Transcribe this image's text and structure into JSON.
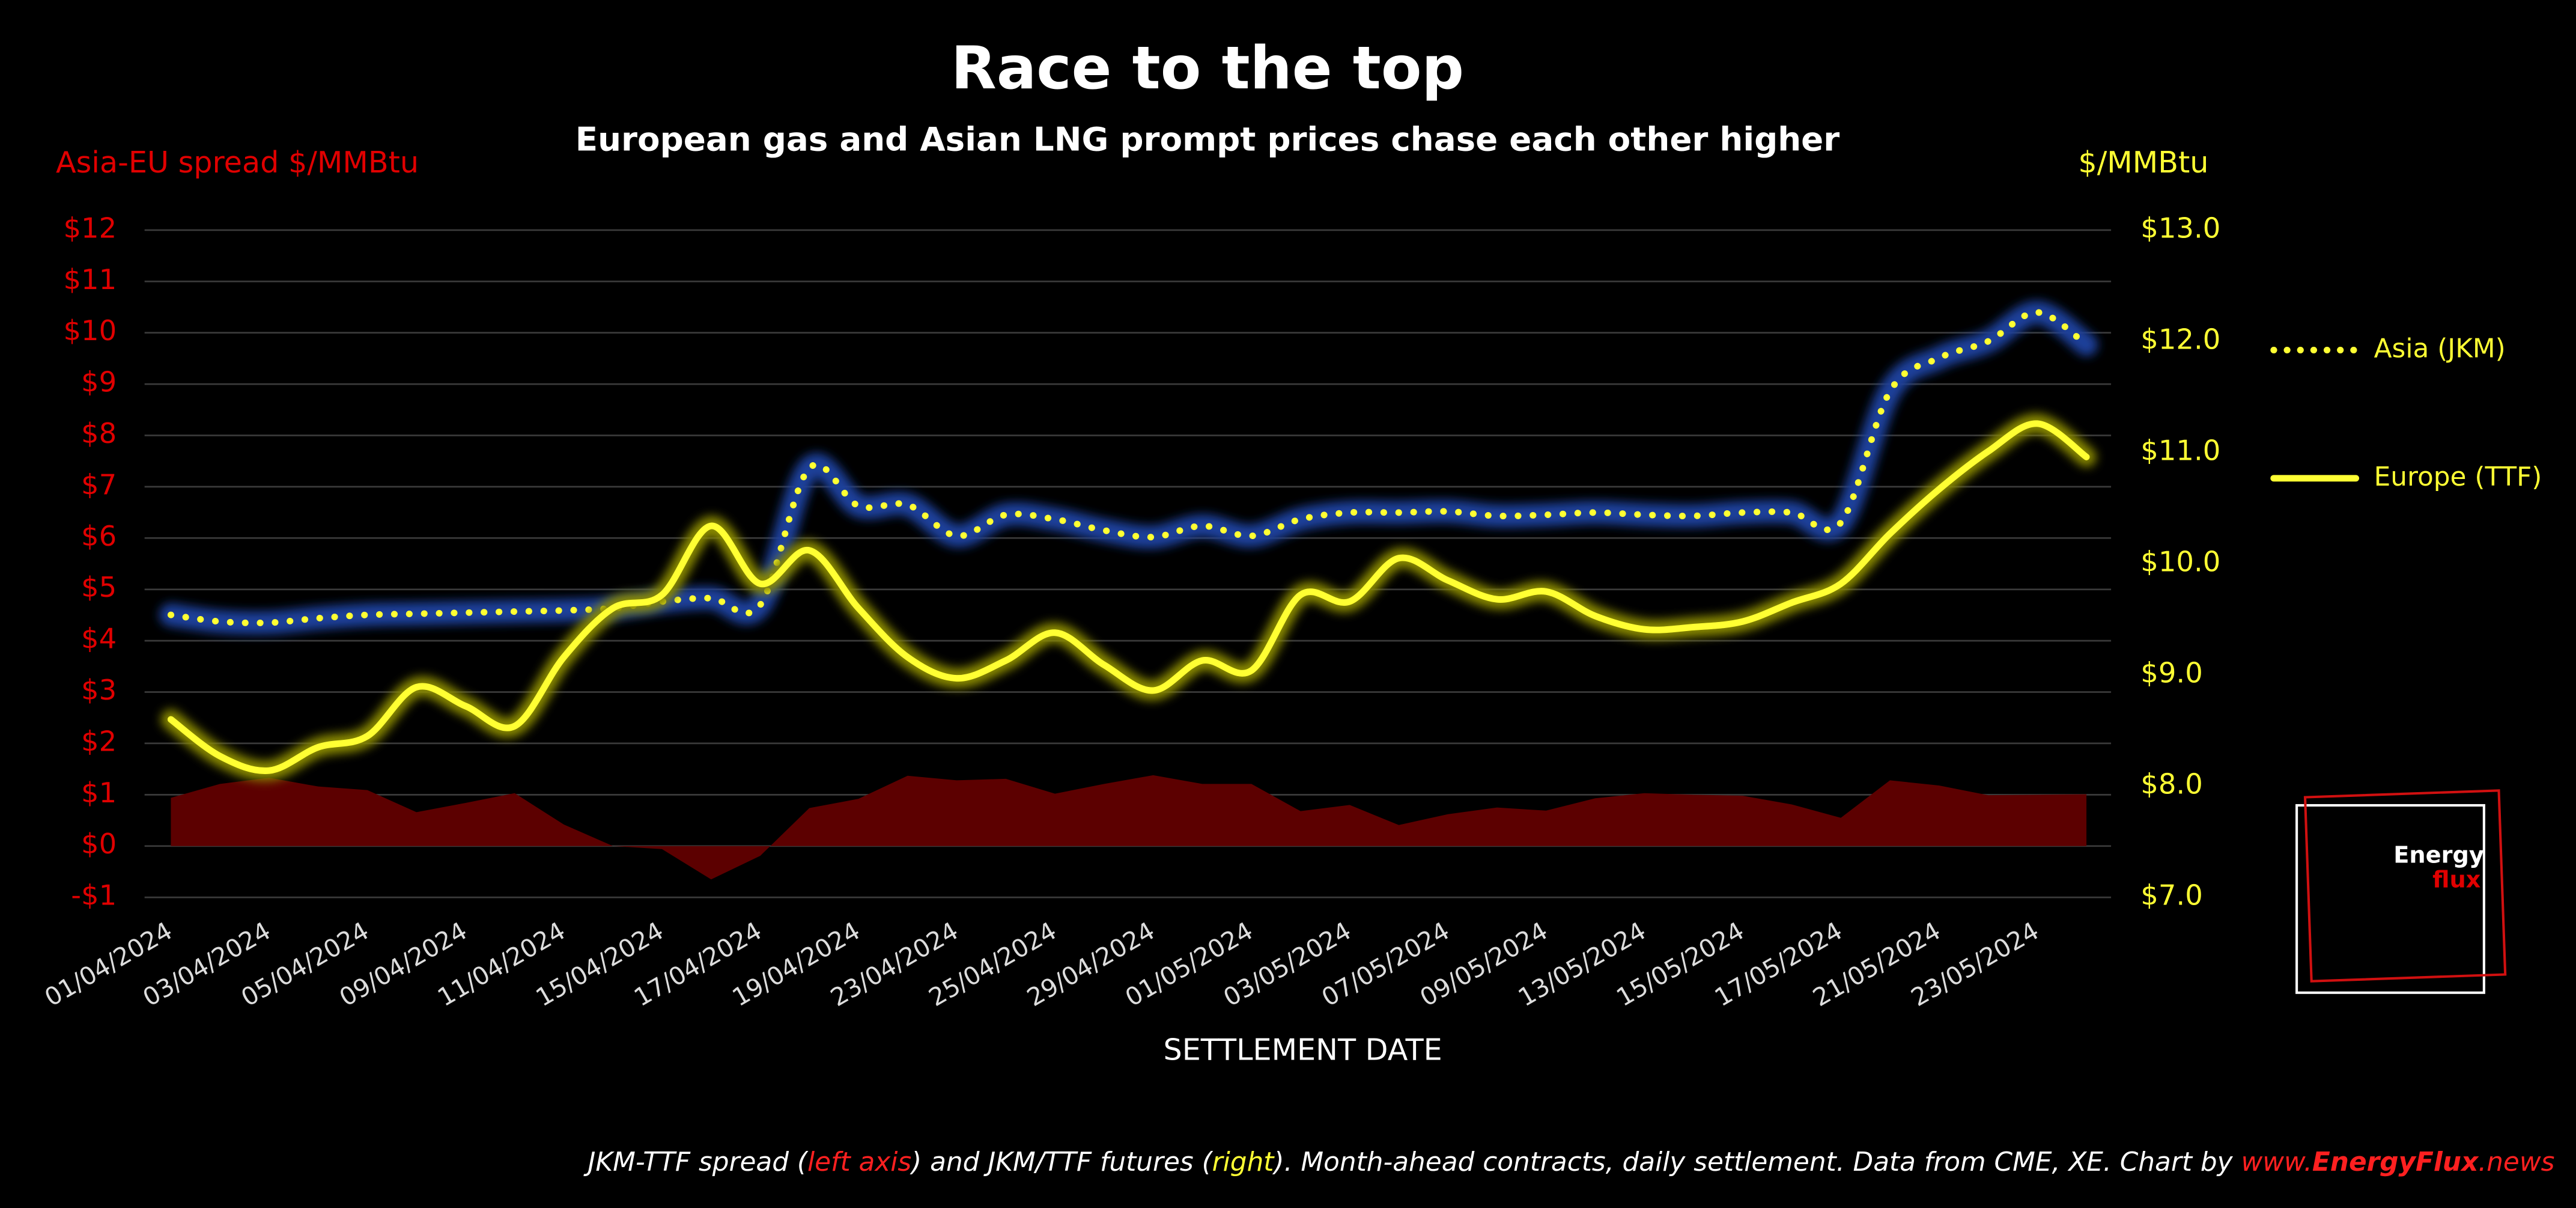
{
  "chart_data": {
    "type": "line",
    "title": "Race to the top",
    "subtitle": "European gas and Asian LNG prompt prices chase each other higher",
    "y_label": "Asia-EU spread $/MMBtu",
    "y2_label": "$/MMBtu",
    "x_label": "SETTLEMENT DATE",
    "categories": [
      "01/04/2024",
      null,
      "03/04/2024",
      null,
      "05/04/2024",
      null,
      "09/04/2024",
      null,
      "11/04/2024",
      null,
      "15/04/2024",
      null,
      "17/04/2024",
      null,
      "19/04/2024",
      null,
      "23/04/2024",
      null,
      "25/04/2024",
      null,
      "29/04/2024",
      null,
      "01/05/2024",
      null,
      "03/05/2024",
      null,
      "07/05/2024",
      null,
      "09/05/2024",
      null,
      "13/05/2024",
      null,
      "15/05/2024",
      null,
      "17/05/2024",
      null,
      "21/05/2024",
      null,
      "23/05/2024",
      null
    ],
    "ylim": [
      -1,
      12
    ],
    "yticks": [
      {
        "value": -1,
        "label": "-$1"
      },
      {
        "value": 0,
        "label": "$0"
      },
      {
        "value": 1,
        "label": "$1"
      },
      {
        "value": 2,
        "label": "$2"
      },
      {
        "value": 3,
        "label": "$3"
      },
      {
        "value": 4,
        "label": "$4"
      },
      {
        "value": 5,
        "label": "$5"
      },
      {
        "value": 6,
        "label": "$6"
      },
      {
        "value": 7,
        "label": "$7"
      },
      {
        "value": 8,
        "label": "$8"
      },
      {
        "value": 9,
        "label": "$9"
      },
      {
        "value": 10,
        "label": "$10"
      },
      {
        "value": 11,
        "label": "$11"
      },
      {
        "value": 12,
        "label": "$12"
      }
    ],
    "y2lim": [
      7,
      13
    ],
    "y2ticks": [
      {
        "value": 7,
        "label": "$7.0"
      },
      {
        "value": 8,
        "label": "$8.0"
      },
      {
        "value": 9,
        "label": "$9.0"
      },
      {
        "value": 10,
        "label": "$10.0"
      },
      {
        "value": 11,
        "label": "$11.0"
      },
      {
        "value": 12,
        "label": "$12.0"
      },
      {
        "value": 13,
        "label": "$13.0"
      }
    ],
    "grid": true,
    "legend": "right",
    "series": [
      {
        "style": "area",
        "color": "#5c0000",
        "axis": "y",
        "values": [
          0.94,
          1.21,
          1.33,
          1.16,
          1.09,
          0.66,
          0.84,
          1.03,
          0.42,
          0.0,
          -0.06,
          -0.65,
          -0.19,
          0.74,
          0.92,
          1.37,
          1.28,
          1.31,
          1.02,
          1.21,
          1.38,
          1.21,
          1.21,
          0.68,
          0.8,
          0.41,
          0.62,
          0.75,
          0.69,
          0.93,
          1.03,
          1.0,
          0.98,
          0.81,
          0.55,
          1.28,
          1.18,
          0.99,
          1.0,
          1.01
        ]
      },
      {
        "name": "Asia (JKM)",
        "style": "dotted",
        "color": "#ffff33",
        "glow": "#1a3f9a",
        "axis": "y2",
        "values": [
          9.54,
          9.48,
          9.47,
          9.51,
          9.54,
          9.55,
          9.56,
          9.57,
          9.58,
          9.6,
          9.66,
          9.69,
          9.63,
          10.86,
          10.52,
          10.53,
          10.25,
          10.44,
          10.4,
          10.3,
          10.24,
          10.34,
          10.25,
          10.4,
          10.46,
          10.46,
          10.47,
          10.43,
          10.44,
          10.46,
          10.44,
          10.43,
          10.46,
          10.46,
          10.37,
          11.55,
          11.85,
          12.0,
          12.26,
          11.97
        ]
      },
      {
        "name": "Europe (TTF)",
        "style": "solid",
        "color": "#ffff33",
        "glow": "#8a8a00",
        "axis": "y2",
        "values": [
          8.6,
          8.27,
          8.14,
          8.35,
          8.45,
          8.89,
          8.72,
          8.54,
          9.16,
          9.6,
          9.72,
          10.34,
          9.82,
          10.12,
          9.6,
          9.16,
          8.97,
          9.13,
          9.38,
          9.09,
          8.86,
          9.13,
          9.04,
          9.72,
          9.66,
          10.05,
          9.85,
          9.68,
          9.75,
          9.53,
          9.41,
          9.43,
          9.48,
          9.65,
          9.82,
          10.27,
          10.67,
          11.01,
          11.26,
          10.96
        ]
      }
    ],
    "footnote": [
      "JKM-TTF spread (",
      "left axis",
      ") and JKM/TTF futures (",
      "right",
      "). Month-ahead contracts, daily settlement. Data from CME, XE. Chart by ",
      "www.",
      "EnergyFlux",
      ".news"
    ],
    "logo": [
      "Energy",
      "flux"
    ]
  }
}
